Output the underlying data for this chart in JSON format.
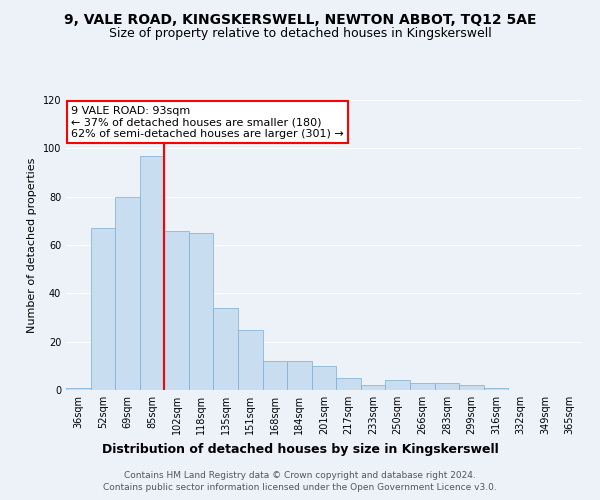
{
  "title": "9, VALE ROAD, KINGSKERSWELL, NEWTON ABBOT, TQ12 5AE",
  "subtitle": "Size of property relative to detached houses in Kingskerswell",
  "xlabel": "Distribution of detached houses by size in Kingskerswell",
  "ylabel": "Number of detached properties",
  "categories": [
    "36sqm",
    "52sqm",
    "69sqm",
    "85sqm",
    "102sqm",
    "118sqm",
    "135sqm",
    "151sqm",
    "168sqm",
    "184sqm",
    "201sqm",
    "217sqm",
    "233sqm",
    "250sqm",
    "266sqm",
    "283sqm",
    "299sqm",
    "316sqm",
    "332sqm",
    "349sqm",
    "365sqm"
  ],
  "values": [
    1,
    67,
    80,
    97,
    66,
    65,
    34,
    25,
    12,
    12,
    10,
    5,
    2,
    4,
    3,
    3,
    2,
    1,
    0,
    0,
    0
  ],
  "bar_color": "#c8ddf0",
  "bar_edge_color": "#7aadd4",
  "redline_index": 3.5,
  "redline_label": "9 VALE ROAD: 93sqm",
  "annotation_line1": "← 37% of detached houses are smaller (180)",
  "annotation_line2": "62% of semi-detached houses are larger (301) →",
  "annotation_box_color": "white",
  "annotation_box_edge": "red",
  "ylim": [
    0,
    120
  ],
  "yticks": [
    0,
    20,
    40,
    60,
    80,
    100,
    120
  ],
  "footer1": "Contains HM Land Registry data © Crown copyright and database right 2024.",
  "footer2": "Contains public sector information licensed under the Open Government Licence v3.0.",
  "background_color": "#edf2f9",
  "plot_bg_color": "#edf2f9",
  "grid_color": "#ffffff",
  "title_fontsize": 10,
  "subtitle_fontsize": 9,
  "xlabel_fontsize": 9,
  "ylabel_fontsize": 8,
  "tick_fontsize": 7,
  "footer_fontsize": 6.5,
  "annotation_fontsize": 8
}
